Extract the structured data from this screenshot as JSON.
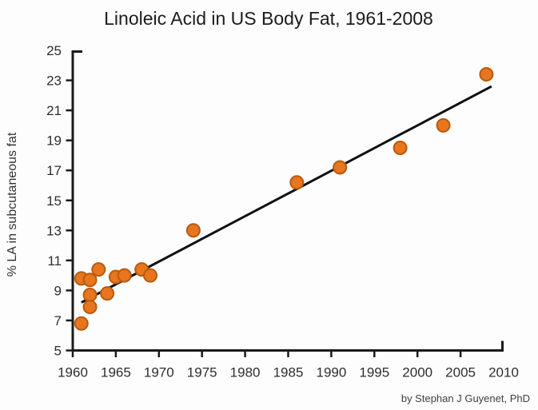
{
  "chart_data": {
    "type": "scatter",
    "title": "Linoleic Acid in US Body Fat, 1961-2008",
    "xlabel": "",
    "ylabel": "% LA in subcutaneous fat",
    "credit": "by Stephan J Guyenet, PhD",
    "xlim": [
      1960,
      2010
    ],
    "ylim": [
      5,
      25
    ],
    "x_ticks": [
      1960,
      1965,
      1970,
      1975,
      1980,
      1985,
      1990,
      1995,
      2000,
      2005,
      2010
    ],
    "y_ticks": [
      5,
      7,
      9,
      11,
      13,
      15,
      17,
      19,
      21,
      23,
      25
    ],
    "grid": false,
    "legend": "none",
    "points": [
      {
        "x": 1961,
        "y": 6.8
      },
      {
        "x": 1961,
        "y": 9.8
      },
      {
        "x": 1962,
        "y": 9.7
      },
      {
        "x": 1962,
        "y": 8.7
      },
      {
        "x": 1962,
        "y": 7.9
      },
      {
        "x": 1963,
        "y": 10.4
      },
      {
        "x": 1964,
        "y": 8.8
      },
      {
        "x": 1965,
        "y": 9.9
      },
      {
        "x": 1966,
        "y": 10.0
      },
      {
        "x": 1968,
        "y": 10.4
      },
      {
        "x": 1969,
        "y": 10.0
      },
      {
        "x": 1974,
        "y": 13.0
      },
      {
        "x": 1986,
        "y": 16.2
      },
      {
        "x": 1991,
        "y": 17.2
      },
      {
        "x": 1998,
        "y": 18.5
      },
      {
        "x": 2003,
        "y": 20.0
      },
      {
        "x": 2008,
        "y": 23.4
      }
    ],
    "trendline": {
      "x1": 1961.0,
      "y1": 8.2,
      "x2": 2008.6,
      "y2": 22.6
    },
    "colors": {
      "marker_fill": "#e8761e",
      "marker_stroke": "#b85a0e",
      "axis": "#1a1a1a",
      "trend": "#111111"
    }
  }
}
